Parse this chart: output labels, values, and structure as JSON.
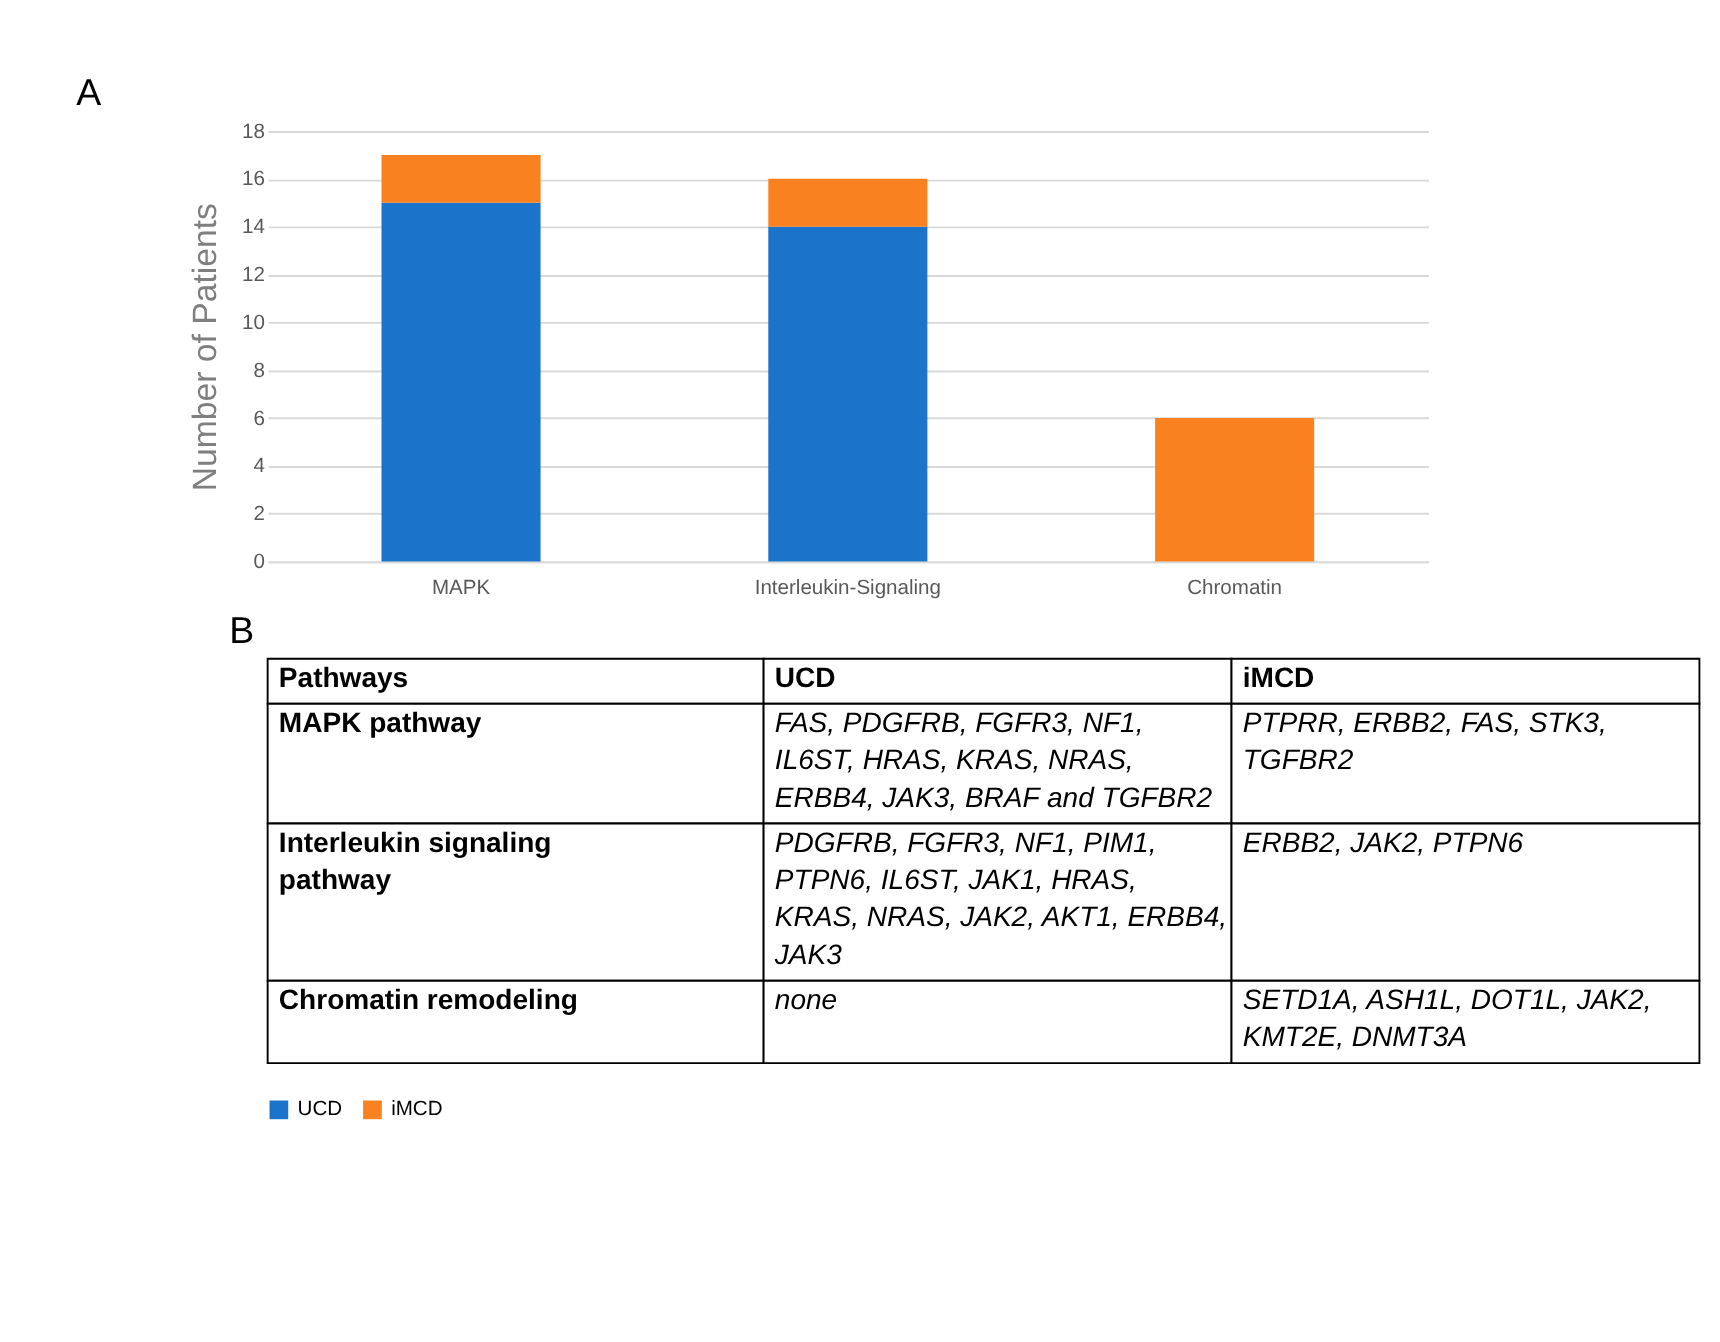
{
  "chart_data": [
    {
      "type": "bar",
      "title": "A",
      "categories": [
        "MAPK",
        "Interleukin-Signaling",
        "Chromatin"
      ],
      "ylabel": "Number of Patients",
      "stacked": true,
      "ylim": [
        0,
        18
      ],
      "yticks": [
        0,
        2,
        4,
        6,
        8,
        10,
        12,
        14,
        16,
        18
      ],
      "grid": "y",
      "legend": "bottom",
      "series": [
        {
          "name": "UCD",
          "color": "#1b74c9",
          "values": [
            15,
            14,
            0
          ]
        },
        {
          "name": "iMCD",
          "color": "#f9811f",
          "values": [
            2,
            2,
            6
          ]
        }
      ]
    },
    {
      "type": "other",
      "title": "B",
      "categories": [
        "Pathways",
        "UCD",
        "iMCD"
      ],
      "y_categories": [
        "MAPK pathway",
        "Interleukin signaling pathway",
        "Chromatin remodeling"
      ],
      "cell_labels": [
        [
          "FAS, PDGFRB, FGFR3, NF1, IL6ST, HRAS, KRAS, NRAS, ERBB4, JAK3, BRAF and TGFBR2",
          "PTPRR, ERBB2, FAS, STK3, TGFBR2"
        ],
        [
          "PDGFRB, FGFR3, NF1, PIM1, PTPN6, IL6ST, JAK1, HRAS, KRAS, NRAS, JAK2, AKT1, ERBB4, JAK3",
          "ERBB2, JAK2, PTPN6"
        ],
        [
          "none",
          "SETD1A, ASH1L, DOT1L, JAK2, KMT2E, DNMT3A"
        ]
      ]
    }
  ]
}
